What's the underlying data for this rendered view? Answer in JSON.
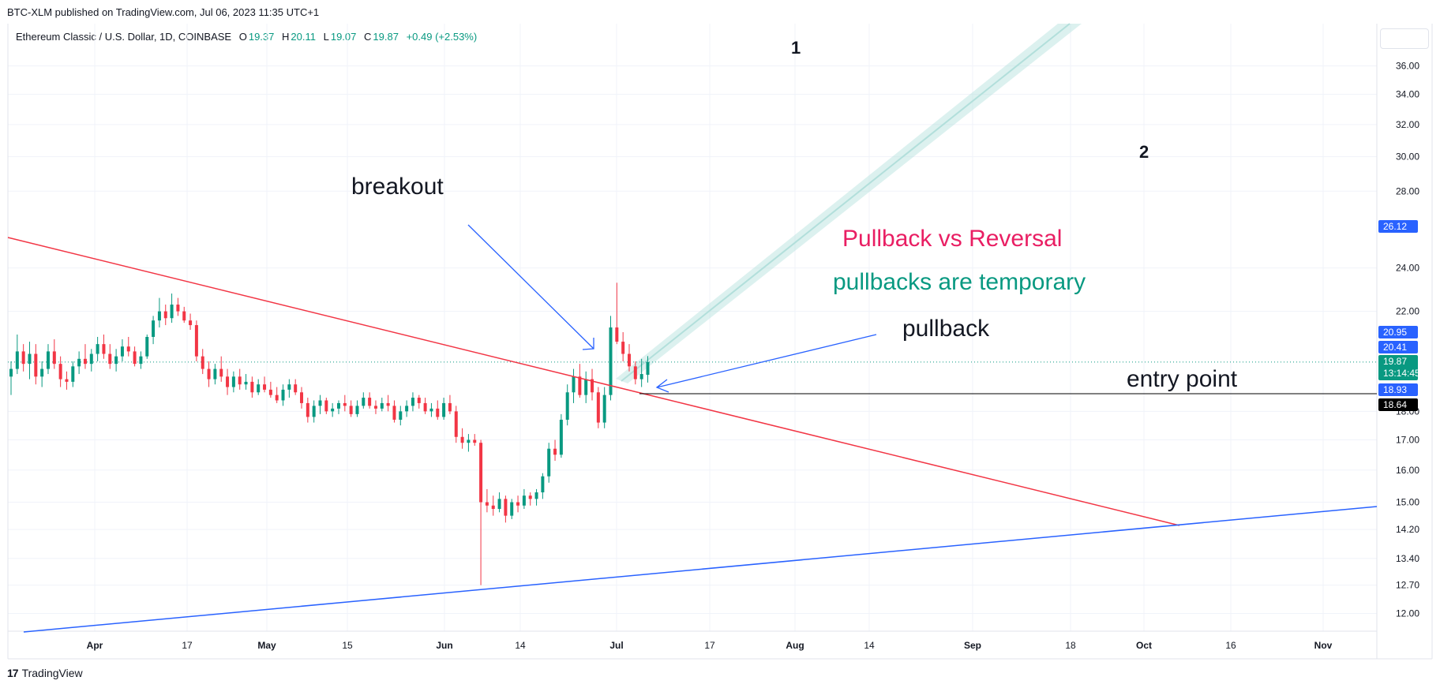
{
  "header": {
    "published_by": "BTC-XLM published on TradingView.com, Jul 06, 2023 11:35 UTC+1"
  },
  "legend": {
    "symbol": "Ethereum Classic / U.S. Dollar, 1D, COINBASE",
    "o_label": "O",
    "o_value": "19.37",
    "h_label": "H",
    "h_value": "20.11",
    "l_label": "L",
    "l_value": "19.07",
    "c_label": "C",
    "c_value": "19.87",
    "change": "+0.49 (+2.53%)"
  },
  "footer": {
    "brand": "TradingView",
    "logo": "17"
  },
  "colors": {
    "up": "#089981",
    "down": "#f23645",
    "grid": "#f0f3fa",
    "trend_red": "#f23645",
    "trend_blue": "#2962ff",
    "pink_text": "#e91e63",
    "teal_text": "#089981",
    "axis_label_blue": "#2962ff",
    "axis_label_teal": "#089981",
    "axis_label_black": "#000000"
  },
  "chart_data": {
    "type": "candlestick",
    "scale": "log",
    "x_labels": [
      "Apr",
      "17",
      "May",
      "15",
      "Jun",
      "14",
      "Jul",
      "17",
      "Aug",
      "14",
      "Sep",
      "18",
      "Oct",
      "16",
      "Nov"
    ],
    "y_ticks": [
      "36.00",
      "34.00",
      "32.00",
      "30.00",
      "28.00",
      "26.12",
      "24.00",
      "22.00",
      "20.95",
      "20.41",
      "19.87",
      "18.93",
      "18.64",
      "18.00",
      "17.00",
      "16.00",
      "15.00",
      "14.20",
      "13.40",
      "12.70",
      "12.00"
    ],
    "price_labels": [
      {
        "text": "26.12",
        "style": "blue"
      },
      {
        "text": "20.95",
        "style": "blue"
      },
      {
        "text": "20.41",
        "style": "blue"
      },
      {
        "text": "19.87",
        "sub": "13:14:45",
        "style": "teal"
      },
      {
        "text": "18.93",
        "style": "blue"
      },
      {
        "text": "18.64",
        "style": "black"
      }
    ],
    "ohlc": [
      [
        19.3,
        19.9,
        18.6,
        19.6
      ],
      [
        19.6,
        21.0,
        19.4,
        20.3
      ],
      [
        20.3,
        20.6,
        19.5,
        19.8
      ],
      [
        19.8,
        20.7,
        19.2,
        20.2
      ],
      [
        20.2,
        20.6,
        19.0,
        19.3
      ],
      [
        19.3,
        19.9,
        18.9,
        19.6
      ],
      [
        19.6,
        20.6,
        19.4,
        20.3
      ],
      [
        20.3,
        20.8,
        19.6,
        19.8
      ],
      [
        19.8,
        20.1,
        18.9,
        19.2
      ],
      [
        19.2,
        19.5,
        18.8,
        19.1
      ],
      [
        19.1,
        19.9,
        18.9,
        19.7
      ],
      [
        19.7,
        20.3,
        19.4,
        20.0
      ],
      [
        20.0,
        20.6,
        19.6,
        19.8
      ],
      [
        19.8,
        20.4,
        19.5,
        20.2
      ],
      [
        20.2,
        20.9,
        19.9,
        20.6
      ],
      [
        20.6,
        21.0,
        20.0,
        20.2
      ],
      [
        20.2,
        20.6,
        19.6,
        19.8
      ],
      [
        19.8,
        20.4,
        19.5,
        20.1
      ],
      [
        20.1,
        20.8,
        19.9,
        20.5
      ],
      [
        20.5,
        20.9,
        20.1,
        20.3
      ],
      [
        20.3,
        20.5,
        19.7,
        19.8
      ],
      [
        19.8,
        20.3,
        19.6,
        20.1
      ],
      [
        20.1,
        21.0,
        20.0,
        20.9
      ],
      [
        20.9,
        21.8,
        20.6,
        21.6
      ],
      [
        21.6,
        22.6,
        21.3,
        22.0
      ],
      [
        22.0,
        22.3,
        21.4,
        21.7
      ],
      [
        21.7,
        22.8,
        21.5,
        22.3
      ],
      [
        22.3,
        22.6,
        21.8,
        22.0
      ],
      [
        22.0,
        22.2,
        21.5,
        21.6
      ],
      [
        21.6,
        21.9,
        21.2,
        21.4
      ],
      [
        21.4,
        21.6,
        19.9,
        20.1
      ],
      [
        20.1,
        20.4,
        19.4,
        19.6
      ],
      [
        19.6,
        19.9,
        18.9,
        19.2
      ],
      [
        19.2,
        19.8,
        19.0,
        19.6
      ],
      [
        19.6,
        20.1,
        19.1,
        19.3
      ],
      [
        19.3,
        19.6,
        18.6,
        18.9
      ],
      [
        18.9,
        19.5,
        18.7,
        19.3
      ],
      [
        19.3,
        19.6,
        18.8,
        19.0
      ],
      [
        19.0,
        19.4,
        18.8,
        19.1
      ],
      [
        19.1,
        19.3,
        18.5,
        18.7
      ],
      [
        18.7,
        19.2,
        18.6,
        19.0
      ],
      [
        19.0,
        19.3,
        18.7,
        18.8
      ],
      [
        18.8,
        19.1,
        18.5,
        18.6
      ],
      [
        18.6,
        18.9,
        18.3,
        18.4
      ],
      [
        18.4,
        19.0,
        18.2,
        18.8
      ],
      [
        18.8,
        19.2,
        18.5,
        19.0
      ],
      [
        19.0,
        19.2,
        18.6,
        18.7
      ],
      [
        18.7,
        18.9,
        18.1,
        18.3
      ],
      [
        18.3,
        18.5,
        17.6,
        17.8
      ],
      [
        17.8,
        18.4,
        17.6,
        18.2
      ],
      [
        18.2,
        18.6,
        17.9,
        18.4
      ],
      [
        18.4,
        18.5,
        17.9,
        18.0
      ],
      [
        18.0,
        18.3,
        17.8,
        18.1
      ],
      [
        18.1,
        18.4,
        17.9,
        18.3
      ],
      [
        18.3,
        18.6,
        18.0,
        18.2
      ],
      [
        18.2,
        18.4,
        17.8,
        17.9
      ],
      [
        17.9,
        18.4,
        17.8,
        18.2
      ],
      [
        18.2,
        18.7,
        18.1,
        18.5
      ],
      [
        18.5,
        18.7,
        18.1,
        18.2
      ],
      [
        18.2,
        18.4,
        17.9,
        18.1
      ],
      [
        18.1,
        18.5,
        18.0,
        18.3
      ],
      [
        18.3,
        18.6,
        18.0,
        18.2
      ],
      [
        18.2,
        18.4,
        17.6,
        17.7
      ],
      [
        17.7,
        18.2,
        17.5,
        18.0
      ],
      [
        18.0,
        18.4,
        17.8,
        18.2
      ],
      [
        18.2,
        18.7,
        18.0,
        18.5
      ],
      [
        18.5,
        18.6,
        18.1,
        18.3
      ],
      [
        18.3,
        18.5,
        17.9,
        18.0
      ],
      [
        18.0,
        18.3,
        17.8,
        18.1
      ],
      [
        18.1,
        18.4,
        17.7,
        17.8
      ],
      [
        17.8,
        18.5,
        17.7,
        18.3
      ],
      [
        18.3,
        18.6,
        17.9,
        18.0
      ],
      [
        18.0,
        18.2,
        16.9,
        17.1
      ],
      [
        17.1,
        17.4,
        16.7,
        16.9
      ],
      [
        16.9,
        17.2,
        16.6,
        17.0
      ],
      [
        17.0,
        17.2,
        16.8,
        16.9
      ],
      [
        16.9,
        17.0,
        12.7,
        15.0
      ],
      [
        15.0,
        15.4,
        14.7,
        14.9
      ],
      [
        14.9,
        15.2,
        14.6,
        14.8
      ],
      [
        14.8,
        15.3,
        14.7,
        15.1
      ],
      [
        15.1,
        15.2,
        14.4,
        14.6
      ],
      [
        14.6,
        15.1,
        14.5,
        15.0
      ],
      [
        15.0,
        15.2,
        14.7,
        14.9
      ],
      [
        14.9,
        15.4,
        14.8,
        15.2
      ],
      [
        15.2,
        15.3,
        14.9,
        15.1
      ],
      [
        15.1,
        15.4,
        14.9,
        15.3
      ],
      [
        15.3,
        15.9,
        15.1,
        15.8
      ],
      [
        15.8,
        16.9,
        15.6,
        16.7
      ],
      [
        16.7,
        17.0,
        16.3,
        16.5
      ],
      [
        16.5,
        17.9,
        16.4,
        17.7
      ],
      [
        17.7,
        19.0,
        17.5,
        18.7
      ],
      [
        18.7,
        19.6,
        18.3,
        19.3
      ],
      [
        19.3,
        19.8,
        18.5,
        18.6
      ],
      [
        18.6,
        19.5,
        18.3,
        19.2
      ],
      [
        19.2,
        19.6,
        18.4,
        18.7
      ],
      [
        18.7,
        18.9,
        17.4,
        17.6
      ],
      [
        17.6,
        18.9,
        17.4,
        18.6
      ],
      [
        18.6,
        21.8,
        18.4,
        21.3
      ],
      [
        21.3,
        23.3,
        20.6,
        20.7
      ],
      [
        20.7,
        21.1,
        19.9,
        20.2
      ],
      [
        20.2,
        20.6,
        19.5,
        19.7
      ],
      [
        19.7,
        19.9,
        19.0,
        19.2
      ],
      [
        19.2,
        20.0,
        18.9,
        19.4
      ],
      [
        19.37,
        20.11,
        19.07,
        19.87
      ]
    ]
  },
  "annotations": {
    "num1": "1",
    "num2": "2",
    "breakout": "breakout",
    "pullback_vs_reversal": "Pullback vs Reversal",
    "pullbacks_temporary": "pullbacks are temporary",
    "pullback": "pullback",
    "entry_point": "entry point"
  }
}
